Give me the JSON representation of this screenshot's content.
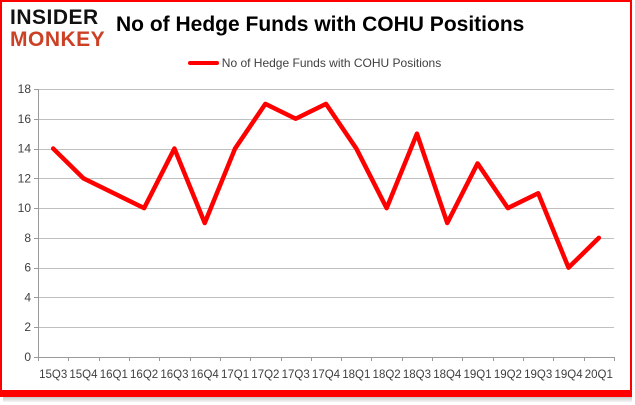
{
  "logo": {
    "line1": "INSIDER",
    "line2": "MONKEY"
  },
  "title": "No of Hedge Funds with COHU Positions",
  "legend": {
    "label": "No of Hedge Funds with COHU Positions"
  },
  "colors": {
    "line": "#fe0000",
    "frame": "#fe0000",
    "grid": "#c0c0c0",
    "axis": "#9a9a9a",
    "tick_text": "#3f3f3f",
    "logo_red": "#cc4125",
    "title_text": "#000000"
  },
  "chart_data": {
    "type": "line",
    "title": "No of Hedge Funds with COHU Positions",
    "categories": [
      "15Q3",
      "15Q4",
      "16Q1",
      "16Q2",
      "16Q3",
      "16Q4",
      "17Q1",
      "17Q2",
      "17Q3",
      "17Q4",
      "18Q1",
      "18Q2",
      "18Q3",
      "18Q4",
      "19Q1",
      "19Q2",
      "19Q3",
      "19Q4",
      "20Q1"
    ],
    "series": [
      {
        "name": "No of Hedge Funds with COHU Positions",
        "values": [
          14,
          12,
          11,
          10,
          14,
          9,
          14,
          17,
          16,
          17,
          14,
          10,
          15,
          9,
          13,
          10,
          11,
          6,
          8
        ]
      }
    ],
    "xlabel": "",
    "ylabel": "",
    "ylim": [
      0,
      18
    ],
    "yticks": [
      0,
      2,
      4,
      6,
      8,
      10,
      12,
      14,
      16,
      18
    ],
    "grid": true,
    "legend_position": "top-center"
  }
}
